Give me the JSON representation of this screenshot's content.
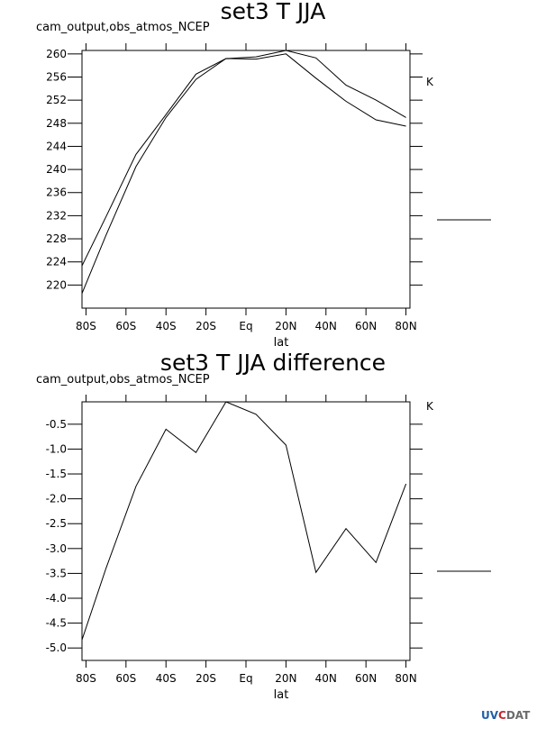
{
  "panels": [
    {
      "title": "set3 T JJA",
      "subtitle": "cam_output,obs_atmos_NCEP",
      "unit": "K",
      "xlabel": "lat"
    },
    {
      "title": "set3 T JJA difference",
      "subtitle": "cam_output,obs_atmos_NCEP",
      "unit": "K",
      "xlabel": "lat"
    }
  ],
  "logo": {
    "part1": "UV",
    "part2": "C",
    "part3": "DAT"
  },
  "chart_data": [
    {
      "type": "line",
      "title": "set3 T JJA",
      "subtitle": "cam_output,obs_atmos_NCEP",
      "xlabel": "lat",
      "ylabel": "K",
      "x": [
        -85,
        -70,
        -55,
        -40,
        -25,
        -10,
        5,
        20,
        35,
        50,
        65,
        80
      ],
      "x_ticks": [
        -80,
        -60,
        -40,
        -20,
        0,
        20,
        40,
        60,
        80
      ],
      "x_tick_labels": [
        "80S",
        "60S",
        "40S",
        "20S",
        "Eq",
        "20N",
        "40N",
        "60N",
        "80N"
      ],
      "xlim": [
        -82,
        82
      ],
      "ylim": [
        216,
        260.6
      ],
      "y_ticks": [
        220,
        224,
        228,
        232,
        236,
        240,
        244,
        248,
        252,
        256,
        260
      ],
      "y_tick_labels": [
        "220",
        "224",
        "228",
        "232",
        "236",
        "240",
        "244",
        "248",
        "252",
        "256",
        "260"
      ],
      "series": [
        {
          "values": [
            221.2,
            231.8,
            242.6,
            249.5,
            256.5,
            259.2,
            259.5,
            260.6,
            259.3,
            254.6,
            252.0,
            249.0
          ]
        },
        {
          "values": [
            216.0,
            228.6,
            240.5,
            249.0,
            255.6,
            259.2,
            259.1,
            260.0,
            255.8,
            251.8,
            248.6,
            247.5
          ]
        }
      ],
      "grid": false,
      "legend": "right"
    },
    {
      "type": "line",
      "title": "set3 T JJA difference",
      "subtitle": "cam_output,obs_atmos_NCEP",
      "xlabel": "lat",
      "ylabel": "K",
      "x": [
        -85,
        -70,
        -55,
        -40,
        -25,
        -10,
        5,
        20,
        35,
        50,
        65,
        80
      ],
      "x_ticks": [
        -80,
        -60,
        -40,
        -20,
        0,
        20,
        40,
        60,
        80
      ],
      "x_tick_labels": [
        "80S",
        "60S",
        "40S",
        "20S",
        "Eq",
        "20N",
        "40N",
        "60N",
        "80N"
      ],
      "xlim": [
        -82,
        82
      ],
      "ylim": [
        -5.25,
        -0.05
      ],
      "y_ticks": [
        -5.0,
        -4.5,
        -4.0,
        -3.5,
        -3.0,
        -2.5,
        -2.0,
        -1.5,
        -1.0,
        -0.5
      ],
      "y_tick_labels": [
        "-5.0",
        "-4.5",
        "-4.0",
        "-3.5",
        "-3.0",
        "-2.5",
        "-2.0",
        "-1.5",
        "-1.0",
        "-0.5"
      ],
      "series": [
        {
          "values": [
            -5.2,
            -3.4,
            -1.75,
            -0.6,
            -1.07,
            -0.05,
            -0.3,
            -0.92,
            -3.48,
            -2.6,
            -3.28,
            -1.7
          ]
        }
      ],
      "grid": false,
      "legend": "right"
    }
  ]
}
